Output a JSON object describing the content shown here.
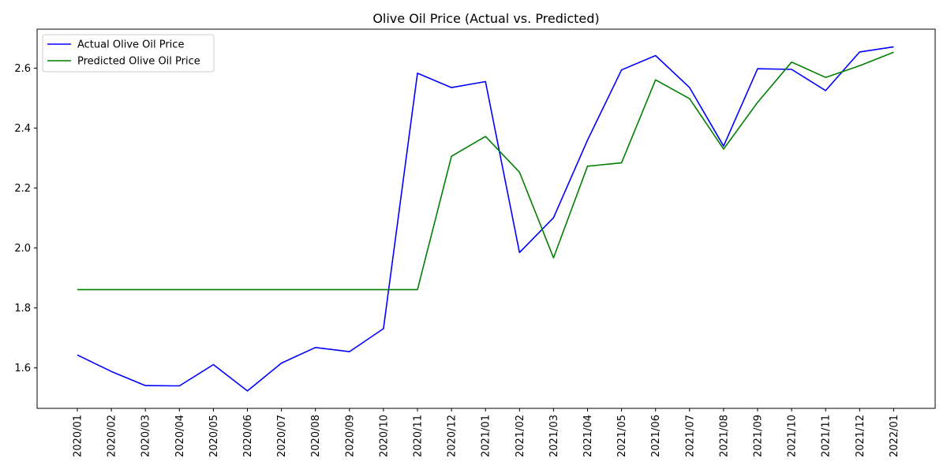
{
  "chart_data": {
    "type": "line",
    "title": "Olive Oil Price (Actual vs. Predicted)",
    "xlabel": "",
    "ylabel": "",
    "categories": [
      "2020/01",
      "2020/02",
      "2020/03",
      "2020/04",
      "2020/05",
      "2020/06",
      "2020/07",
      "2020/08",
      "2020/09",
      "2020/10",
      "2020/11",
      "2020/12",
      "2021/01",
      "2021/02",
      "2021/03",
      "2021/04",
      "2021/05",
      "2021/06",
      "2021/07",
      "2021/08",
      "2021/09",
      "2021/10",
      "2021/11",
      "2021/12",
      "2022/01"
    ],
    "ylim": [
      1.465,
      2.73
    ],
    "yticks": [
      1.6,
      1.8,
      2.0,
      2.2,
      2.4,
      2.6
    ],
    "ytick_labels": [
      "1.6",
      "1.8",
      "2.0",
      "2.2",
      "2.4",
      "2.6"
    ],
    "grid": false,
    "legend_position": "top-left",
    "series": [
      {
        "name": "Actual Olive Oil Price",
        "color": "#0000ff",
        "values": [
          1.643,
          1.588,
          1.541,
          1.54,
          1.611,
          1.523,
          1.616,
          1.668,
          1.654,
          1.731,
          2.583,
          2.535,
          2.555,
          1.985,
          2.101,
          2.36,
          2.594,
          2.642,
          2.535,
          2.34,
          2.598,
          2.596,
          2.525,
          2.654,
          2.671
        ]
      },
      {
        "name": "Predicted Olive Oil Price",
        "color": "#008000",
        "values": [
          1.861,
          1.861,
          1.861,
          1.861,
          1.861,
          1.861,
          1.861,
          1.861,
          1.861,
          1.861,
          1.861,
          2.306,
          2.372,
          2.253,
          1.967,
          2.273,
          2.284,
          2.561,
          2.498,
          2.33,
          2.486,
          2.62,
          2.569,
          2.608,
          2.653
        ]
      }
    ]
  }
}
